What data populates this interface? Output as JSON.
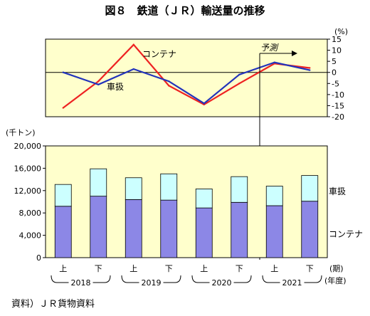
{
  "title": "図８　鉄道（ＪＲ）輸送量の推移",
  "source_note": "資料）ＪＲ貨物資料",
  "colors": {
    "panel_bg": "#ffffcc",
    "bar_kyakusha": "#ccffff",
    "bar_container": "#8c87e6",
    "line_container": "#ee2222",
    "line_kyakusha": "#2233bb"
  },
  "chart_data": [
    {
      "type": "line",
      "unit_label": "(%)",
      "x": [
        "上",
        "下",
        "上",
        "下",
        "上",
        "下",
        "上",
        "下"
      ],
      "series": [
        {
          "name": "コンテナ",
          "values": [
            -16,
            -4,
            12.5,
            -6,
            -14.5,
            -5,
            4,
            2
          ]
        },
        {
          "name": "車扱",
          "values": [
            0,
            -5.5,
            1.5,
            -4,
            -14,
            -1,
            4.5,
            1
          ]
        }
      ],
      "ylim": [
        -20,
        15
      ],
      "yticks": [
        "15",
        "10",
        "5",
        "0",
        "-5",
        "-10",
        "-15",
        "-20"
      ],
      "yticks_values": [
        15,
        10,
        5,
        0,
        -5,
        -10,
        -15,
        -20
      ],
      "annotation": "予測"
    },
    {
      "type": "bar",
      "stacked": true,
      "unit_label": "(千トン)",
      "categories": [
        "上",
        "下",
        "上",
        "下",
        "上",
        "下",
        "上",
        "下"
      ],
      "years": [
        "2018",
        "2019",
        "2020",
        "2021"
      ],
      "period_label": "(期)",
      "year_label": "(年度)",
      "series": [
        {
          "name": "コンテナ",
          "values": [
            9200,
            11000,
            10400,
            10300,
            8900,
            9900,
            9300,
            10100
          ]
        },
        {
          "name": "車扱",
          "values": [
            3900,
            4900,
            3900,
            4700,
            3400,
            4600,
            3500,
            4600
          ]
        }
      ],
      "ylim": [
        0,
        20000
      ],
      "yticks": [
        "20,000",
        "16,000",
        "12,000",
        "8,000",
        "4,000",
        "0"
      ],
      "yticks_values": [
        20000,
        16000,
        12000,
        8000,
        4000,
        0
      ]
    }
  ]
}
